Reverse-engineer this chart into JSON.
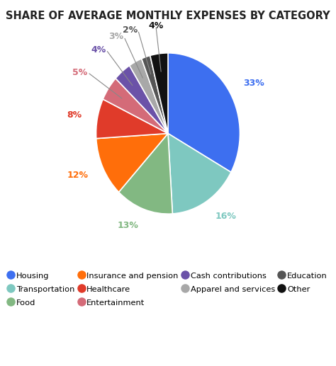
{
  "title": "SHARE OF AVERAGE MONTHLY EXPENSES BY CATEGORY",
  "categories": [
    "Housing",
    "Transportation",
    "Food",
    "Insurance and pension",
    "Healthcare",
    "Entertainment",
    "Cash contributions",
    "Apparel and services",
    "Education",
    "Other"
  ],
  "values": [
    33,
    16,
    13,
    12,
    8,
    5,
    4,
    3,
    2,
    4
  ],
  "colors": [
    "#3D6FF0",
    "#7EC8C0",
    "#82B882",
    "#FF6E0A",
    "#E03B2A",
    "#D46B78",
    "#6B52A8",
    "#A8A8A8",
    "#555555",
    "#111111"
  ],
  "label_colors": [
    "#3D6FF0",
    "#7EC8C0",
    "#82B882",
    "#FF6E0A",
    "#E03B2A",
    "#D46B78",
    "#6B52A8",
    "#A8A8A8",
    "#555555",
    "#111111"
  ],
  "background_color": "#FFFFFF",
  "title_fontsize": 10.5,
  "figsize": [
    4.74,
    5.17
  ],
  "dpi": 100,
  "legend_rows": [
    [
      "Housing",
      "Transportation",
      "Food",
      "Insurance and pension"
    ],
    [
      "Healthcare",
      "Entertainment",
      "Cash contributions"
    ],
    [
      "Apparel and services",
      "Education",
      "Other"
    ]
  ]
}
